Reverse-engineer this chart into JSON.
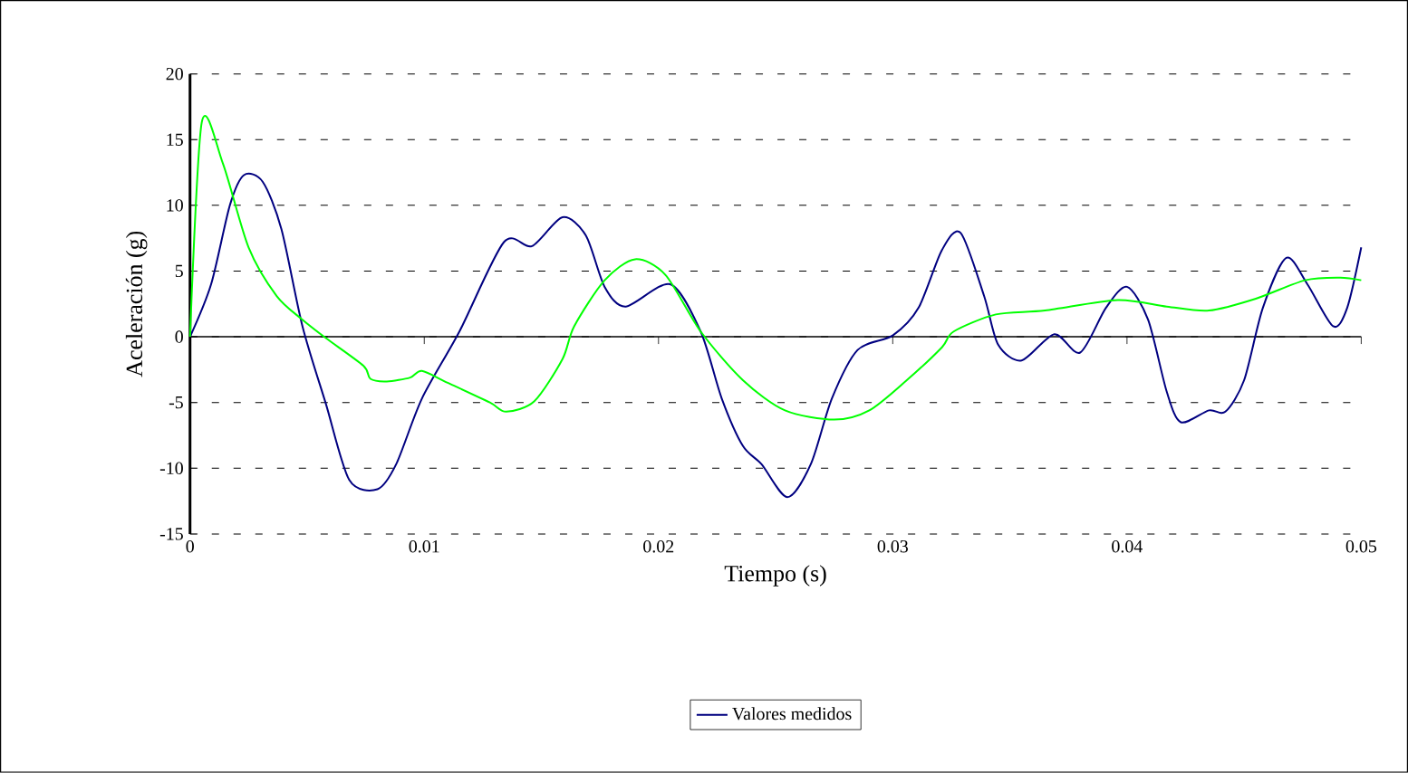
{
  "chart_data": {
    "type": "line",
    "xlabel": "Tiempo (s)",
    "ylabel": "Aceleración (g)",
    "xlim": [
      0,
      0.05
    ],
    "xticks": [
      0,
      0.01,
      0.02,
      0.03,
      0.04,
      0.05
    ],
    "ylim": [
      -15,
      20
    ],
    "yticks": [
      -15,
      -10,
      -5,
      0,
      5,
      10,
      15,
      20
    ],
    "grid": "y",
    "legend": "bottom",
    "marker": "none",
    "line_style": "solid",
    "series": [
      {
        "name": "Valores medidos",
        "color": "#000080",
        "x": [
          0,
          0.0009,
          0.0017,
          0.0023,
          0.0031,
          0.0039,
          0.0048,
          0.0058,
          0.0068,
          0.008,
          0.0088,
          0.0099,
          0.0115,
          0.0134,
          0.0146,
          0.0159,
          0.0169,
          0.0177,
          0.0186,
          0.0205,
          0.0218,
          0.0227,
          0.0236,
          0.0244,
          0.0255,
          0.0265,
          0.0274,
          0.0285,
          0.03,
          0.0311,
          0.0321,
          0.0329,
          0.0339,
          0.0345,
          0.0355,
          0.0369,
          0.038,
          0.0391,
          0.04,
          0.0409,
          0.0417,
          0.0423,
          0.0435,
          0.0442,
          0.045,
          0.0458,
          0.0468,
          0.0477,
          0.0488,
          0.0494,
          0.05
        ],
        "values": [
          0,
          4.0,
          10,
          12.3,
          11.8,
          8.2,
          0.8,
          -5.1,
          -10.9,
          -11.6,
          -9.7,
          -4.7,
          0.4,
          7.2,
          6.9,
          9.1,
          7.7,
          3.8,
          2.3,
          4.0,
          0.4,
          -4.7,
          -8.3,
          -9.7,
          -12.2,
          -9.7,
          -4.7,
          -1.0,
          0.1,
          2.2,
          6.6,
          7.9,
          3.1,
          -0.6,
          -1.8,
          0.2,
          -1.2,
          2.2,
          3.8,
          1.3,
          -4.2,
          -6.5,
          -5.6,
          -5.7,
          -3.3,
          2.2,
          6.0,
          4.0,
          0.8,
          2.2,
          6.8
        ]
      },
      {
        "color": "#00ff00",
        "x": [
          0,
          0.0005,
          0.0014,
          0.0025,
          0.0037,
          0.0048,
          0.0058,
          0.0074,
          0.0077,
          0.0084,
          0.0094,
          0.0099,
          0.011,
          0.0128,
          0.0135,
          0.0147,
          0.0159,
          0.0164,
          0.0177,
          0.019,
          0.0203,
          0.0218,
          0.0236,
          0.0254,
          0.0275,
          0.029,
          0.0306,
          0.0321,
          0.0326,
          0.0344,
          0.0365,
          0.0396,
          0.0417,
          0.0435,
          0.0455,
          0.0476,
          0.0491,
          0.05
        ],
        "values": [
          0,
          16.3,
          13.2,
          6.8,
          3.1,
          1.3,
          -0.1,
          -2.2,
          -3.2,
          -3.4,
          -3.1,
          -2.6,
          -3.5,
          -5.0,
          -5.7,
          -4.9,
          -1.7,
          0.8,
          4.3,
          5.9,
          4.7,
          0.4,
          -3.3,
          -5.6,
          -6.3,
          -5.6,
          -3.3,
          -0.8,
          0.4,
          1.7,
          2.0,
          2.8,
          2.3,
          2.0,
          2.9,
          4.3,
          4.5,
          4.3
        ]
      }
    ]
  }
}
